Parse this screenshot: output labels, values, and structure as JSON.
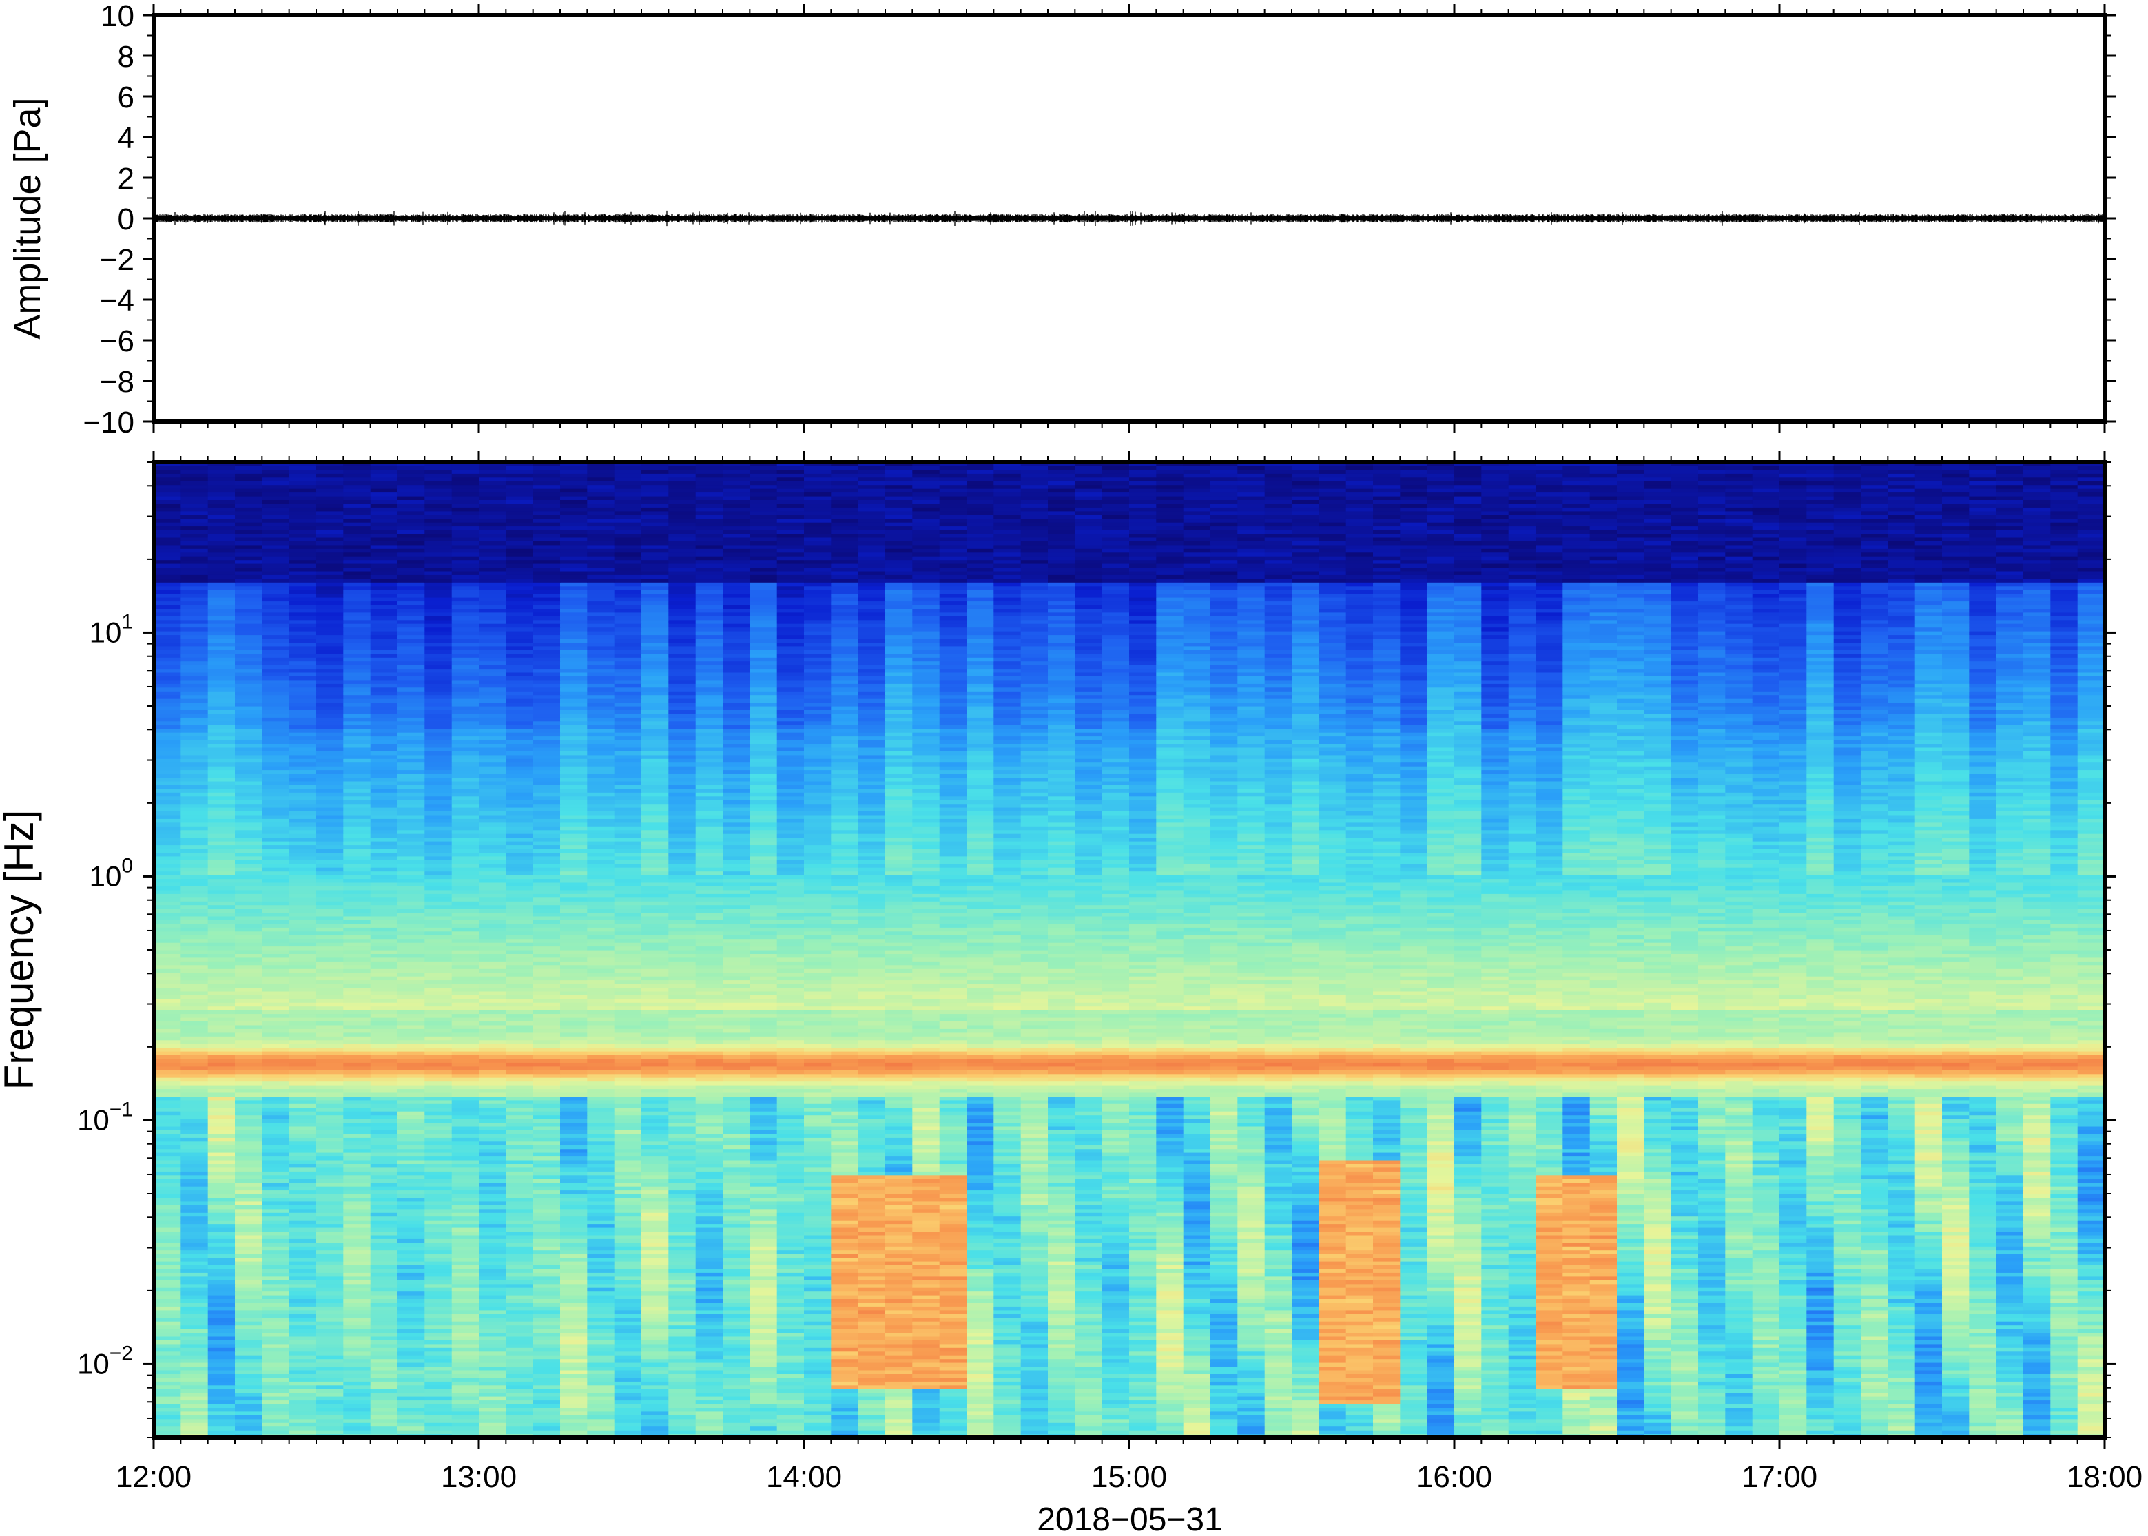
{
  "chart_data": [
    {
      "type": "line",
      "panel": "waveform",
      "ylabel": "Amplitude [Pa]",
      "ylim": [
        -10,
        10
      ],
      "y_ticks": [
        10,
        8,
        6,
        4,
        2,
        0,
        -2,
        -4,
        -6,
        -8,
        -10
      ],
      "y_tick_labels": [
        "10",
        "8",
        "6",
        "4",
        "2",
        "0",
        "−2",
        "−4",
        "−6",
        "−8",
        "−10"
      ],
      "x_range": [
        "2018-05-31 12:00",
        "2018-05-31 18:00"
      ],
      "series_mean": 0,
      "series_noise_amplitude": 0.15,
      "line_color": "#000000"
    },
    {
      "type": "heatmap",
      "panel": "spectrogram",
      "ylabel": "Frequency [Hz]",
      "yscale": "log",
      "ylim": [
        0.005,
        50
      ],
      "y_ticks": [
        0.01,
        0.1,
        1,
        10
      ],
      "y_tick_labels": [
        {
          "base": "10",
          "exp": "−2"
        },
        {
          "base": "10",
          "exp": "−1"
        },
        {
          "base": "10",
          "exp": "0"
        },
        {
          "base": "10",
          "exp": "1"
        }
      ],
      "xlabel": "2018−05−31",
      "x_ticks": [
        "12:00",
        "13:00",
        "14:00",
        "15:00",
        "16:00",
        "17:00",
        "18:00"
      ],
      "x_range": [
        "2018-05-31 12:00",
        "2018-05-31 18:00"
      ],
      "colormap": [
        "#0b0a7a",
        "#0a1fd0",
        "#1e5ef0",
        "#2aa0f8",
        "#4ae0e8",
        "#9bf0b8",
        "#e6f59a",
        "#fbd070",
        "#f89a50",
        "#ef6a40"
      ],
      "microbarom_band_hz": 0.17,
      "high_energy_intervals": [
        {
          "start": "14:05",
          "end": "14:30",
          "f_min": 0.008,
          "f_max": 0.06
        },
        {
          "start": "15:35",
          "end": "15:50",
          "f_min": 0.007,
          "f_max": 0.07
        },
        {
          "start": "16:15",
          "end": "16:30",
          "f_min": 0.008,
          "f_max": 0.06
        }
      ]
    }
  ]
}
